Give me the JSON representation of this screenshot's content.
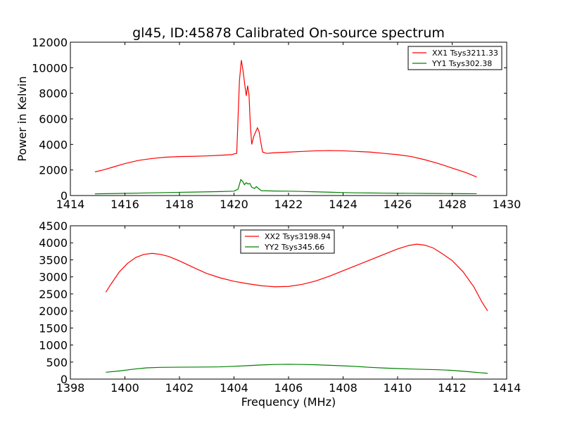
{
  "chart_data": [
    {
      "type": "line",
      "title": "gl45, ID:45878 Calibrated On-source spectrum",
      "xlabel": "",
      "ylabel": "Power in Kelvin",
      "xlim": [
        1414,
        1430
      ],
      "ylim": [
        0,
        12000
      ],
      "xticks": [
        1414,
        1416,
        1418,
        1420,
        1422,
        1424,
        1426,
        1428,
        1430
      ],
      "yticks": [
        0,
        2000,
        4000,
        6000,
        8000,
        10000,
        12000
      ],
      "legend_position": "top-right",
      "grid": false,
      "series": [
        {
          "name": "XX1 Tsys3211.33",
          "color": "#ff0000",
          "points": [
            [
              1414.9,
              1850
            ],
            [
              1415.2,
              2000
            ],
            [
              1415.6,
              2250
            ],
            [
              1416.0,
              2500
            ],
            [
              1416.5,
              2750
            ],
            [
              1417.0,
              2900
            ],
            [
              1417.5,
              3000
            ],
            [
              1418.0,
              3050
            ],
            [
              1418.5,
              3070
            ],
            [
              1419.0,
              3100
            ],
            [
              1419.5,
              3150
            ],
            [
              1419.9,
              3200
            ],
            [
              1420.1,
              3300
            ],
            [
              1420.2,
              9000
            ],
            [
              1420.27,
              10600
            ],
            [
              1420.33,
              9800
            ],
            [
              1420.4,
              8600
            ],
            [
              1420.45,
              7800
            ],
            [
              1420.5,
              8600
            ],
            [
              1420.55,
              7900
            ],
            [
              1420.6,
              5500
            ],
            [
              1420.65,
              4000
            ],
            [
              1420.72,
              4600
            ],
            [
              1420.8,
              5000
            ],
            [
              1420.86,
              5300
            ],
            [
              1420.92,
              5000
            ],
            [
              1420.98,
              4200
            ],
            [
              1421.05,
              3400
            ],
            [
              1421.2,
              3300
            ],
            [
              1421.5,
              3350
            ],
            [
              1422.0,
              3400
            ],
            [
              1422.5,
              3450
            ],
            [
              1423.0,
              3500
            ],
            [
              1423.5,
              3520
            ],
            [
              1424.0,
              3500
            ],
            [
              1424.5,
              3450
            ],
            [
              1425.0,
              3400
            ],
            [
              1425.5,
              3300
            ],
            [
              1426.0,
              3200
            ],
            [
              1426.5,
              3050
            ],
            [
              1427.0,
              2800
            ],
            [
              1427.5,
              2500
            ],
            [
              1428.0,
              2150
            ],
            [
              1428.5,
              1800
            ],
            [
              1428.9,
              1450
            ]
          ]
        },
        {
          "name": "YY1 Tsys302.38",
          "color": "#008000",
          "points": [
            [
              1414.9,
              130
            ],
            [
              1415.5,
              150
            ],
            [
              1416.0,
              170
            ],
            [
              1416.5,
              190
            ],
            [
              1417.0,
              210
            ],
            [
              1417.5,
              230
            ],
            [
              1418.0,
              250
            ],
            [
              1418.5,
              270
            ],
            [
              1419.0,
              290
            ],
            [
              1419.5,
              310
            ],
            [
              1420.0,
              340
            ],
            [
              1420.15,
              500
            ],
            [
              1420.25,
              1250
            ],
            [
              1420.32,
              1100
            ],
            [
              1420.38,
              850
            ],
            [
              1420.45,
              1000
            ],
            [
              1420.52,
              900
            ],
            [
              1420.58,
              950
            ],
            [
              1420.65,
              650
            ],
            [
              1420.75,
              550
            ],
            [
              1420.82,
              700
            ],
            [
              1420.9,
              550
            ],
            [
              1421.0,
              380
            ],
            [
              1421.5,
              350
            ],
            [
              1422.0,
              340
            ],
            [
              1422.5,
              320
            ],
            [
              1423.0,
              290
            ],
            [
              1423.5,
              260
            ],
            [
              1424.0,
              230
            ],
            [
              1424.5,
              210
            ],
            [
              1425.0,
              200
            ],
            [
              1425.5,
              190
            ],
            [
              1426.0,
              180
            ],
            [
              1426.5,
              175
            ],
            [
              1427.0,
              165
            ],
            [
              1427.5,
              160
            ],
            [
              1428.0,
              150
            ],
            [
              1428.5,
              145
            ],
            [
              1428.9,
              140
            ]
          ]
        }
      ]
    },
    {
      "type": "line",
      "title": "",
      "xlabel": "Frequency (MHz)",
      "ylabel": "",
      "xlim": [
        1398,
        1414
      ],
      "ylim": [
        0,
        4500
      ],
      "xticks": [
        1398,
        1400,
        1402,
        1404,
        1406,
        1408,
        1410,
        1412,
        1414
      ],
      "yticks": [
        0,
        500,
        1000,
        1500,
        2000,
        2500,
        3000,
        3500,
        4000,
        4500
      ],
      "legend_position": "top-center",
      "grid": false,
      "series": [
        {
          "name": "XX2 Tsys3198.94",
          "color": "#ff0000",
          "points": [
            [
              1399.3,
              2550
            ],
            [
              1399.5,
              2800
            ],
            [
              1399.8,
              3150
            ],
            [
              1400.1,
              3400
            ],
            [
              1400.4,
              3570
            ],
            [
              1400.7,
              3660
            ],
            [
              1401.0,
              3690
            ],
            [
              1401.3,
              3660
            ],
            [
              1401.6,
              3600
            ],
            [
              1402.0,
              3470
            ],
            [
              1402.5,
              3280
            ],
            [
              1403.0,
              3100
            ],
            [
              1403.5,
              2970
            ],
            [
              1404.0,
              2870
            ],
            [
              1404.5,
              2800
            ],
            [
              1405.0,
              2740
            ],
            [
              1405.5,
              2710
            ],
            [
              1406.0,
              2720
            ],
            [
              1406.5,
              2780
            ],
            [
              1407.0,
              2880
            ],
            [
              1407.5,
              3020
            ],
            [
              1408.0,
              3180
            ],
            [
              1408.5,
              3340
            ],
            [
              1409.0,
              3500
            ],
            [
              1409.5,
              3660
            ],
            [
              1410.0,
              3820
            ],
            [
              1410.4,
              3920
            ],
            [
              1410.7,
              3960
            ],
            [
              1411.0,
              3930
            ],
            [
              1411.3,
              3850
            ],
            [
              1411.6,
              3700
            ],
            [
              1412.0,
              3480
            ],
            [
              1412.4,
              3150
            ],
            [
              1412.8,
              2700
            ],
            [
              1413.1,
              2250
            ],
            [
              1413.3,
              2000
            ]
          ]
        },
        {
          "name": "YY2 Tsys345.66",
          "color": "#008000",
          "points": [
            [
              1399.3,
              200
            ],
            [
              1399.8,
              240
            ],
            [
              1400.3,
              290
            ],
            [
              1400.8,
              330
            ],
            [
              1401.3,
              345
            ],
            [
              1402.0,
              350
            ],
            [
              1402.5,
              352
            ],
            [
              1403.0,
              355
            ],
            [
              1403.5,
              360
            ],
            [
              1404.0,
              375
            ],
            [
              1404.5,
              395
            ],
            [
              1405.0,
              415
            ],
            [
              1405.5,
              430
            ],
            [
              1406.0,
              435
            ],
            [
              1406.5,
              430
            ],
            [
              1407.0,
              420
            ],
            [
              1407.5,
              405
            ],
            [
              1408.0,
              390
            ],
            [
              1408.5,
              370
            ],
            [
              1409.0,
              345
            ],
            [
              1409.5,
              325
            ],
            [
              1410.0,
              310
            ],
            [
              1410.5,
              295
            ],
            [
              1411.0,
              285
            ],
            [
              1411.5,
              275
            ],
            [
              1412.0,
              255
            ],
            [
              1412.5,
              225
            ],
            [
              1413.0,
              190
            ],
            [
              1413.3,
              170
            ]
          ]
        }
      ]
    }
  ]
}
